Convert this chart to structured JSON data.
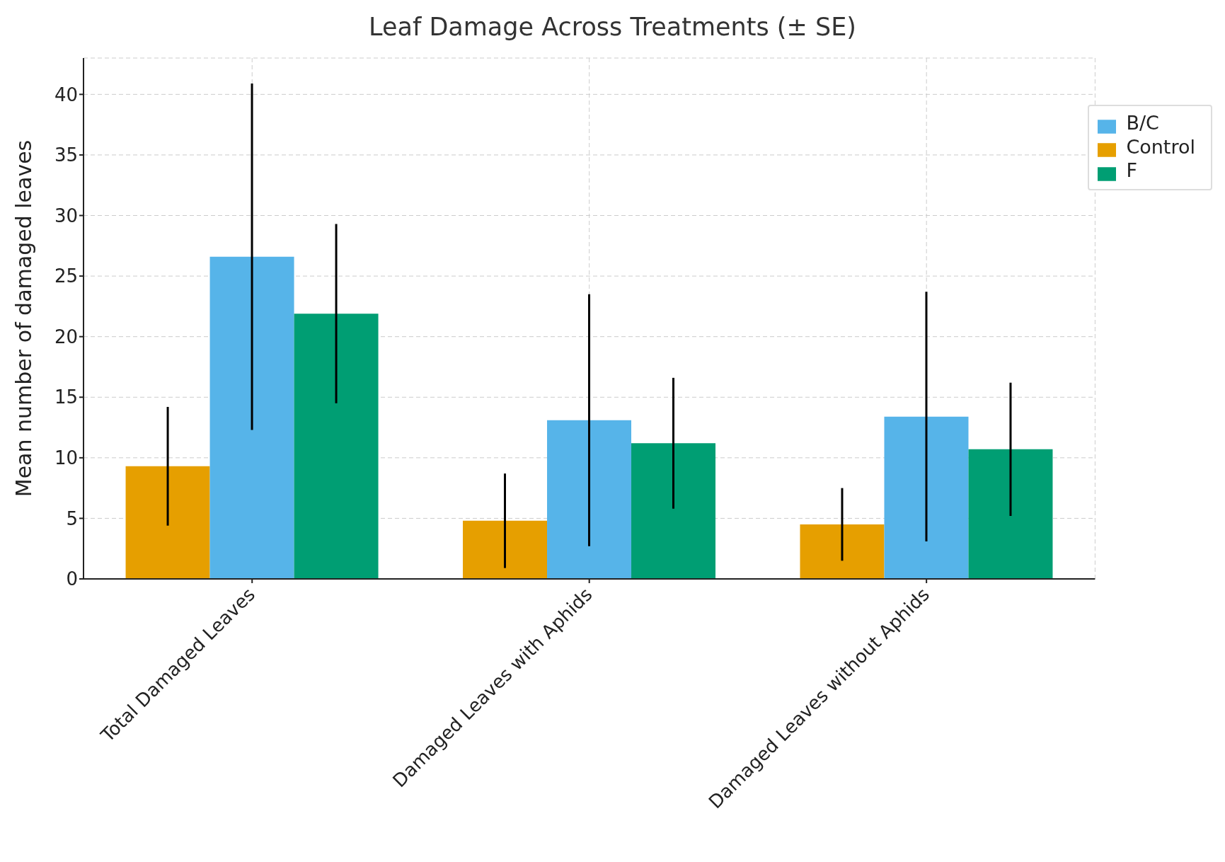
{
  "chart_data": {
    "type": "bar",
    "title": "Leaf Damage Across Treatments (± SE)",
    "ylabel": "Mean number of damaged leaves",
    "categories": [
      "Total Damaged Leaves",
      "Damaged Leaves with Aphids",
      "Damaged Leaves without Aphids"
    ],
    "series": [
      {
        "name": "Control",
        "color": "#e69f00",
        "values": [
          9.3,
          4.8,
          4.5
        ],
        "errors": [
          4.9,
          3.9,
          3.0
        ]
      },
      {
        "name": "B/C",
        "color": "#56b4e9",
        "values": [
          26.6,
          13.1,
          13.4
        ],
        "errors": [
          14.3,
          10.4,
          10.3
        ]
      },
      {
        "name": "F",
        "color": "#009e73",
        "values": [
          21.9,
          11.2,
          10.7
        ],
        "errors": [
          7.4,
          5.4,
          5.5
        ]
      }
    ],
    "ylim": [
      0,
      43
    ],
    "yticks": [
      0,
      5,
      10,
      15,
      20,
      25,
      30,
      35,
      40
    ],
    "grid": true,
    "legend": "top right"
  }
}
